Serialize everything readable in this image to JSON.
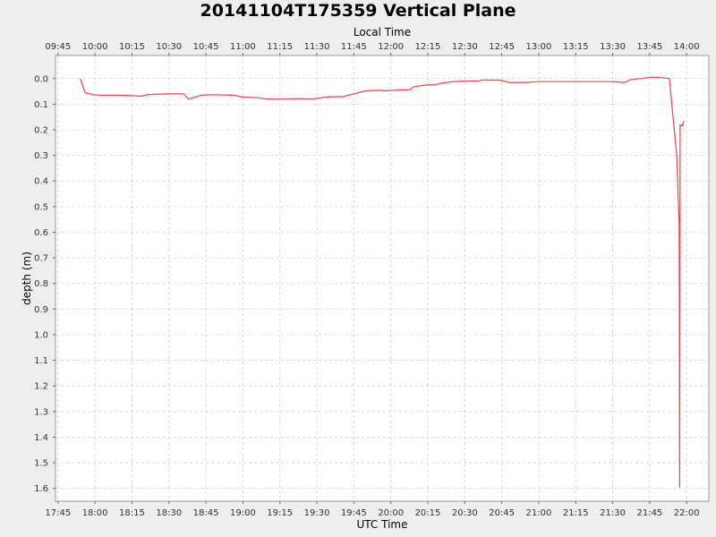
{
  "chart_data": {
    "type": "line",
    "title": "20141104T175359 Vertical Plane",
    "top_axis_label": "Local Time",
    "xlabel": "UTC Time",
    "ylabel": "depth (m)",
    "x_unit": "UTC hour (decimal)",
    "xlim": [
      17.733,
      22.15
    ],
    "ylim": [
      -0.09,
      1.65
    ],
    "y_inverted": true,
    "grid": true,
    "utc_ticks": [
      "17:45",
      "18:00",
      "18:15",
      "18:30",
      "18:45",
      "19:00",
      "19:15",
      "19:30",
      "19:45",
      "20:00",
      "20:15",
      "20:30",
      "20:45",
      "21:00",
      "21:15",
      "21:30",
      "21:45",
      "22:00"
    ],
    "local_ticks": [
      "09:45",
      "10:00",
      "10:15",
      "10:30",
      "10:45",
      "11:00",
      "11:15",
      "11:30",
      "11:45",
      "12:00",
      "12:15",
      "12:30",
      "12:45",
      "13:00",
      "13:15",
      "13:30",
      "13:45",
      "14:00"
    ],
    "y_ticks": [
      "0.0",
      "0.1",
      "0.2",
      "0.3",
      "0.4",
      "0.5",
      "0.6",
      "0.7",
      "0.8",
      "0.9",
      "1.0",
      "1.1",
      "1.2",
      "1.3",
      "1.4",
      "1.5",
      "1.6"
    ],
    "series": [
      {
        "color": "#e8464c",
        "x": [
          17.9,
          17.933,
          17.983,
          18.05,
          18.183,
          18.317,
          18.35,
          18.483,
          18.6,
          18.633,
          18.717,
          18.8,
          18.933,
          19.0,
          19.1,
          19.167,
          19.283,
          19.383,
          19.467,
          19.567,
          19.683,
          19.733,
          19.833,
          19.917,
          19.967,
          20.0,
          20.05,
          20.133,
          20.15,
          20.2,
          20.25,
          20.3,
          20.35,
          20.417,
          20.5,
          20.6,
          20.617,
          20.733,
          20.8,
          20.917,
          21.0,
          21.5,
          21.583,
          21.617,
          21.667,
          21.7,
          21.75,
          21.817,
          21.883,
          21.933,
          21.95,
          21.953,
          21.956,
          21.957,
          21.963,
          21.967,
          21.971,
          21.975,
          21.979,
          21.983
        ],
        "y": [
          0.0,
          0.055,
          0.063,
          0.065,
          0.065,
          0.069,
          0.063,
          0.06,
          0.06,
          0.08,
          0.065,
          0.063,
          0.065,
          0.072,
          0.075,
          0.08,
          0.08,
          0.078,
          0.08,
          0.072,
          0.07,
          0.062,
          0.048,
          0.046,
          0.048,
          0.047,
          0.045,
          0.043,
          0.033,
          0.028,
          0.025,
          0.024,
          0.018,
          0.012,
          0.01,
          0.009,
          0.006,
          0.006,
          0.015,
          0.015,
          0.012,
          0.012,
          0.015,
          0.005,
          0.001,
          0.0,
          -0.005,
          -0.005,
          0.0,
          0.3,
          0.58,
          1.595,
          0.18,
          0.185,
          0.185,
          0.18,
          0.18,
          0.185,
          0.17,
          0.165
        ]
      }
    ]
  }
}
